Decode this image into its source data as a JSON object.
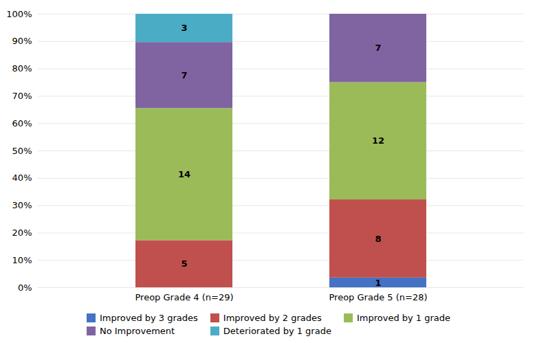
{
  "chart_data": {
    "type": "bar",
    "stacked": true,
    "grid": true,
    "legend": "bottom",
    "categories": [
      "Preop Grade 4 (n=29)",
      "Preop Grade 5 (n=28)"
    ],
    "series": [
      {
        "name": "Improved by 3 grades",
        "color": "#4472C4",
        "values": [
          0,
          0.03571428571428571
        ],
        "counts": [
          0,
          1
        ]
      },
      {
        "name": "Improved by 2 grades",
        "color": "#C0504D",
        "values": [
          0.1724137931034483,
          0.2857142857142857
        ],
        "counts": [
          5,
          8
        ]
      },
      {
        "name": "Improved by 1 grade",
        "color": "#9BBB59",
        "values": [
          0.4827586206896552,
          0.42857142857142855
        ],
        "counts": [
          14,
          12
        ]
      },
      {
        "name": "No Improvement",
        "color": "#8064A2",
        "values": [
          0.2413793103448276,
          0.25
        ],
        "counts": [
          7,
          7
        ]
      },
      {
        "name": "Deteriorated by 1 grade",
        "color": "#4BACC6",
        "values": [
          0.10344827586206896,
          0
        ],
        "counts": [
          3,
          0
        ]
      }
    ],
    "ylim": [
      0,
      1.0
    ],
    "yticks": [
      {
        "value": 0,
        "label": "0%"
      },
      {
        "value": 0.1,
        "label": "10%"
      },
      {
        "value": 0.2,
        "label": "20%"
      },
      {
        "value": 0.3,
        "label": "30%"
      },
      {
        "value": 0.4,
        "label": "40%"
      },
      {
        "value": 0.5,
        "label": "50%"
      },
      {
        "value": 0.6,
        "label": "60%"
      },
      {
        "value": 0.7,
        "label": "70%"
      },
      {
        "value": 0.8,
        "label": "80%"
      },
      {
        "value": 0.9,
        "label": "90%"
      },
      {
        "value": 1.0,
        "label": "100%"
      }
    ]
  }
}
